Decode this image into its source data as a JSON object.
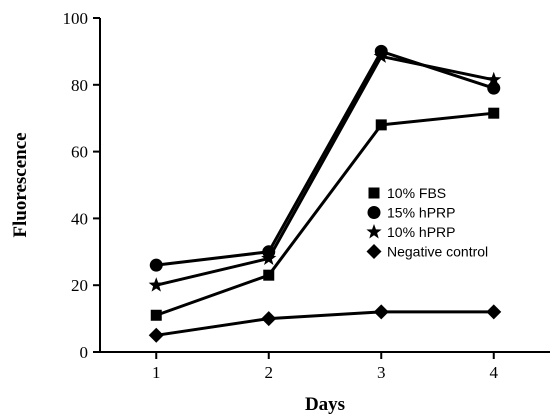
{
  "chart_data": {
    "type": "line",
    "xlabel": "Days",
    "ylabel": "Fluorescence",
    "x": [
      1,
      2,
      3,
      4
    ],
    "xticks": [
      "1",
      "2",
      "3",
      "4"
    ],
    "ylim": [
      0,
      100
    ],
    "yticks": [
      "0",
      "20",
      "40",
      "60",
      "80",
      "100"
    ],
    "grid": false,
    "legend_position": "right-center",
    "series": [
      {
        "name": "10% FBS",
        "marker": "square",
        "values": [
          11,
          23,
          68,
          71.5
        ]
      },
      {
        "name": "15% hPRP",
        "marker": "circle",
        "values": [
          26,
          30,
          90,
          79
        ]
      },
      {
        "name": "10% hPRP",
        "marker": "star",
        "values": [
          20,
          28,
          88.5,
          81.5
        ]
      },
      {
        "name": "Negative control",
        "marker": "diamond",
        "values": [
          5,
          10,
          12,
          12
        ]
      }
    ]
  }
}
